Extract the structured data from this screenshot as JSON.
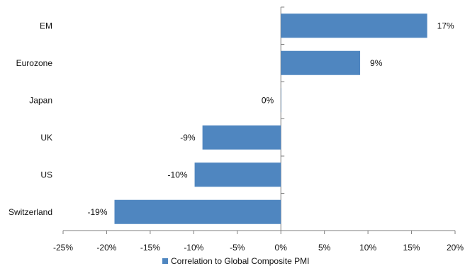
{
  "chart_data": {
    "type": "bar",
    "orientation": "horizontal",
    "categories": [
      "EM",
      "Eurozone",
      "Japan",
      "UK",
      "US",
      "Switzerland"
    ],
    "series": [
      {
        "name": "Correlation to Global Composite PMI",
        "values": [
          0.168,
          0.091,
          0.0,
          -0.09,
          -0.099,
          -0.191
        ],
        "labels": [
          "17%",
          "9%",
          "0%",
          "-9%",
          "-10%",
          "-19%"
        ],
        "color": "#4f86c0"
      }
    ],
    "xlim": [
      -0.25,
      0.2
    ],
    "xticks": [
      -0.25,
      -0.2,
      -0.15,
      -0.1,
      -0.05,
      0.0,
      0.05,
      0.1,
      0.15,
      0.2
    ],
    "xtick_labels": [
      "-25%",
      "-20%",
      "-15%",
      "-10%",
      "-5%",
      "0%",
      "5%",
      "10%",
      "15%",
      "20%"
    ],
    "grid": false,
    "legend_position": "bottom-center",
    "title": "",
    "xlabel": "",
    "ylabel": ""
  }
}
